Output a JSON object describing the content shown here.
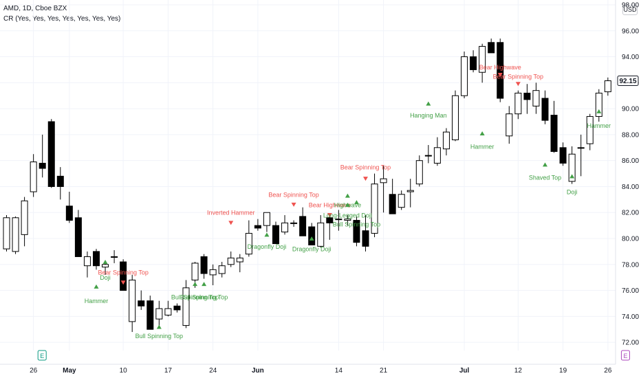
{
  "header": {
    "line1": "AMD, 1D, Cboe BZX",
    "line2": "CR (Yes, Yes, Yes, Yes, Yes, Yes, Yes)"
  },
  "currency_button": "USD",
  "colors": {
    "bull": "#ffffff",
    "bear": "#000000",
    "wick": "#000000",
    "bull_label": "#43a047",
    "bear_label": "#ef5350",
    "grid": "#f0f3fa",
    "axis_text": "#131722",
    "last_price_bg": "#ffffff",
    "event_earn": "#089981",
    "event_div": "#ab47bc"
  },
  "chart_data": {
    "type": "candlestick",
    "title": "AMD, 1D, Cboe BZX",
    "ylim": [
      71,
      98
    ],
    "y_ticks": [
      72,
      74,
      76,
      78,
      80,
      82,
      84,
      86,
      88,
      90,
      92,
      94,
      96,
      98
    ],
    "last_price": "92.15",
    "x_ticks": [
      {
        "label": "26",
        "i": 3
      },
      {
        "label": "May",
        "i": 7
      },
      {
        "label": "10",
        "i": 13
      },
      {
        "label": "17",
        "i": 18
      },
      {
        "label": "24",
        "i": 23
      },
      {
        "label": "Jun",
        "i": 28
      },
      {
        "label": "14",
        "i": 37
      },
      {
        "label": "21",
        "i": 42
      },
      {
        "label": "Jul",
        "i": 51
      },
      {
        "label": "12",
        "i": 57
      },
      {
        "label": "19",
        "i": 62
      },
      {
        "label": "26",
        "i": 67
      }
    ],
    "candles": [
      {
        "o": 79.2,
        "h": 81.8,
        "l": 79.0,
        "c": 81.6
      },
      {
        "o": 79.0,
        "h": 81.7,
        "l": 78.8,
        "c": 81.6
      },
      {
        "o": 80.3,
        "h": 83.2,
        "l": 79.4,
        "c": 82.9
      },
      {
        "o": 83.6,
        "h": 86.5,
        "l": 83.2,
        "c": 85.9
      },
      {
        "o": 85.8,
        "h": 88.0,
        "l": 84.7,
        "c": 85.4
      },
      {
        "o": 89.0,
        "h": 89.2,
        "l": 83.9,
        "c": 84.0
      },
      {
        "o": 84.8,
        "h": 85.5,
        "l": 83.0,
        "c": 84.0
      },
      {
        "o": 82.5,
        "h": 83.6,
        "l": 81.2,
        "c": 81.4
      },
      {
        "o": 81.6,
        "h": 82.2,
        "l": 78.6,
        "c": 78.6
      },
      {
        "o": 77.9,
        "h": 79.0,
        "l": 77.0,
        "c": 78.6
      },
      {
        "o": 79.0,
        "h": 79.2,
        "l": 77.6,
        "c": 77.9
      },
      {
        "o": 77.8,
        "h": 78.2,
        "l": 77.2,
        "c": 78.0
      },
      {
        "o": 78.6,
        "h": 79.1,
        "l": 78.1,
        "c": 78.6
      },
      {
        "o": 78.2,
        "h": 78.4,
        "l": 76.0,
        "c": 76.0
      },
      {
        "o": 73.6,
        "h": 77.2,
        "l": 72.8,
        "c": 76.8
      },
      {
        "o": 75.2,
        "h": 76.0,
        "l": 74.5,
        "c": 74.8
      },
      {
        "o": 75.2,
        "h": 75.6,
        "l": 73.0,
        "c": 73.0
      },
      {
        "o": 73.8,
        "h": 75.2,
        "l": 73.3,
        "c": 74.6
      },
      {
        "o": 74.1,
        "h": 75.2,
        "l": 74.0,
        "c": 74.6
      },
      {
        "o": 74.8,
        "h": 75.0,
        "l": 74.3,
        "c": 74.5
      },
      {
        "o": 73.3,
        "h": 76.8,
        "l": 73.1,
        "c": 76.2
      },
      {
        "o": 76.8,
        "h": 78.2,
        "l": 76.2,
        "c": 78.1
      },
      {
        "o": 78.6,
        "h": 78.8,
        "l": 76.9,
        "c": 77.3
      },
      {
        "o": 77.2,
        "h": 78.0,
        "l": 76.4,
        "c": 77.6
      },
      {
        "o": 77.3,
        "h": 78.2,
        "l": 77.0,
        "c": 77.9
      },
      {
        "o": 78.0,
        "h": 79.0,
        "l": 77.8,
        "c": 78.5
      },
      {
        "o": 78.2,
        "h": 78.8,
        "l": 77.4,
        "c": 78.5
      },
      {
        "o": 78.8,
        "h": 81.4,
        "l": 78.6,
        "c": 80.4
      },
      {
        "o": 81.0,
        "h": 81.5,
        "l": 80.6,
        "c": 80.8
      },
      {
        "o": 81.0,
        "h": 82.0,
        "l": 80.5,
        "c": 82.0
      },
      {
        "o": 81.0,
        "h": 81.3,
        "l": 79.6,
        "c": 79.6
      },
      {
        "o": 80.5,
        "h": 81.8,
        "l": 80.3,
        "c": 81.2
      },
      {
        "o": 81.2,
        "h": 81.4,
        "l": 80.9,
        "c": 81.2
      },
      {
        "o": 81.7,
        "h": 82.4,
        "l": 80.3,
        "c": 80.2
      },
      {
        "o": 80.9,
        "h": 81.2,
        "l": 79.5,
        "c": 79.5
      },
      {
        "o": 79.4,
        "h": 81.8,
        "l": 79.3,
        "c": 81.2
      },
      {
        "o": 81.6,
        "h": 81.8,
        "l": 79.9,
        "c": 81.2
      },
      {
        "o": 81.5,
        "h": 82.2,
        "l": 80.6,
        "c": 81.5
      },
      {
        "o": 81.4,
        "h": 81.8,
        "l": 81.0,
        "c": 81.5
      },
      {
        "o": 81.4,
        "h": 81.7,
        "l": 79.4,
        "c": 79.7
      },
      {
        "o": 80.6,
        "h": 81.8,
        "l": 79.0,
        "c": 79.4
      },
      {
        "o": 80.4,
        "h": 85.0,
        "l": 80.1,
        "c": 84.2
      },
      {
        "o": 84.3,
        "h": 85.6,
        "l": 82.0,
        "c": 84.6
      },
      {
        "o": 83.4,
        "h": 84.6,
        "l": 82.0,
        "c": 81.9
      },
      {
        "o": 82.4,
        "h": 83.7,
        "l": 82.2,
        "c": 83.4
      },
      {
        "o": 83.6,
        "h": 84.6,
        "l": 82.4,
        "c": 83.7
      },
      {
        "o": 84.2,
        "h": 86.4,
        "l": 84.0,
        "c": 86.0
      },
      {
        "o": 86.4,
        "h": 87.2,
        "l": 85.8,
        "c": 86.4
      },
      {
        "o": 85.8,
        "h": 87.8,
        "l": 85.6,
        "c": 87.0
      },
      {
        "o": 86.9,
        "h": 88.5,
        "l": 86.4,
        "c": 88.2
      },
      {
        "o": 87.6,
        "h": 91.4,
        "l": 87.5,
        "c": 91.0
      },
      {
        "o": 91.0,
        "h": 94.4,
        "l": 90.8,
        "c": 94.0
      },
      {
        "o": 94.0,
        "h": 94.5,
        "l": 92.8,
        "c": 93.0
      },
      {
        "o": 92.8,
        "h": 95.0,
        "l": 92.0,
        "c": 94.8
      },
      {
        "o": 95.1,
        "h": 95.4,
        "l": 94.3,
        "c": 94.3
      },
      {
        "o": 95.1,
        "h": 95.4,
        "l": 90.5,
        "c": 90.8
      },
      {
        "o": 87.9,
        "h": 90.2,
        "l": 87.3,
        "c": 89.6
      },
      {
        "o": 89.6,
        "h": 91.4,
        "l": 89.2,
        "c": 91.2
      },
      {
        "o": 91.2,
        "h": 91.9,
        "l": 89.6,
        "c": 90.7
      },
      {
        "o": 90.2,
        "h": 92.0,
        "l": 89.6,
        "c": 91.4
      },
      {
        "o": 90.8,
        "h": 91.4,
        "l": 88.8,
        "c": 89.1
      },
      {
        "o": 89.5,
        "h": 90.6,
        "l": 86.6,
        "c": 86.7
      },
      {
        "o": 87.0,
        "h": 87.4,
        "l": 85.6,
        "c": 85.8
      },
      {
        "o": 84.4,
        "h": 87.1,
        "l": 84.2,
        "c": 86.5
      },
      {
        "o": 87.0,
        "h": 88.0,
        "l": 84.8,
        "c": 87.0
      },
      {
        "o": 87.3,
        "h": 89.6,
        "l": 86.8,
        "c": 89.4
      },
      {
        "o": 89.4,
        "h": 91.5,
        "l": 89.0,
        "c": 91.2
      },
      {
        "o": 91.3,
        "h": 92.4,
        "l": 91.0,
        "c": 92.15
      }
    ],
    "patterns": [
      {
        "i": 10,
        "text": "Hammer",
        "type": "bull",
        "arrow_y": 76.3,
        "text_y": 75.2
      },
      {
        "i": 11,
        "text": "Doji",
        "type": "bull",
        "arrow_y": 78.2,
        "text_y": 77.0
      },
      {
        "i": 13,
        "text": "Bear Spinning Top",
        "type": "bear",
        "arrow_y": 76.6,
        "text_y": 77.4
      },
      {
        "i": 17,
        "text": "Bull Spinning Top",
        "type": "bull",
        "arrow_y": 73.2,
        "text_y": 72.5
      },
      {
        "i": 21,
        "text": "Bull Spinning Top",
        "type": "bull",
        "arrow_y": 76.5,
        "text_y": 75.5
      },
      {
        "i": 22,
        "text": "Bull Spinning Top",
        "type": "bull",
        "arrow_y": 76.5,
        "text_y": 75.5
      },
      {
        "i": 25,
        "text": "Inverted Hammer",
        "type": "bear",
        "arrow_y": 81.2,
        "text_y": 82.0
      },
      {
        "i": 29,
        "text": "Dragonfly Doji",
        "type": "bull",
        "arrow_y": 80.3,
        "text_y": 79.4
      },
      {
        "i": 32,
        "text": "Bear Spinning Top",
        "type": "bear",
        "arrow_y": 82.6,
        "text_y": 83.4
      },
      {
        "i": 34,
        "text": "Dragonfly Doji",
        "type": "bull",
        "arrow_y": 80.0,
        "text_y": 79.2
      },
      {
        "i": 36,
        "text": "Bear Highwave",
        "type": "bear",
        "arrow_y": 81.8,
        "text_y": 82.6
      },
      {
        "i": 38,
        "text": "Highwave",
        "type": "bull",
        "arrow_y": 83.3,
        "text_y": 82.6
      },
      {
        "i": 38,
        "text": "Long-Legged Doji",
        "type": "bull",
        "arrow_y": 82.6,
        "text_y": 81.8
      },
      {
        "i": 39,
        "text": "Bull Spinning Top",
        "type": "bull",
        "arrow_y": 82.8,
        "text_y": 81.1
      },
      {
        "i": 40,
        "text": "Bear Spinning Top",
        "type": "bear",
        "arrow_y": 84.6,
        "text_y": 85.5
      },
      {
        "i": 47,
        "text": "Hanging Man",
        "type": "bull",
        "arrow_y": 90.4,
        "text_y": 89.5
      },
      {
        "i": 53,
        "text": "Hammer",
        "type": "bull",
        "arrow_y": 88.1,
        "text_y": 87.1
      },
      {
        "i": 55,
        "text": "Bear Highwave",
        "type": "bear",
        "arrow_y": 92.6,
        "text_y": 93.2
      },
      {
        "i": 57,
        "text": "Bear Spinning Top",
        "type": "bear",
        "arrow_y": 91.9,
        "text_y": 92.5
      },
      {
        "i": 60,
        "text": "Shaved Top",
        "type": "bull",
        "arrow_y": 85.7,
        "text_y": 84.7
      },
      {
        "i": 63,
        "text": "Doji",
        "type": "bull",
        "arrow_y": 84.8,
        "text_y": 83.6
      },
      {
        "i": 66,
        "text": "Hammer",
        "type": "bull",
        "arrow_y": 89.8,
        "text_y": 88.7
      }
    ],
    "events": [
      {
        "i": 4,
        "symbol": "E",
        "kind": "earnings"
      },
      {
        "i": 69,
        "symbol": "E",
        "kind": "dividend"
      }
    ]
  }
}
